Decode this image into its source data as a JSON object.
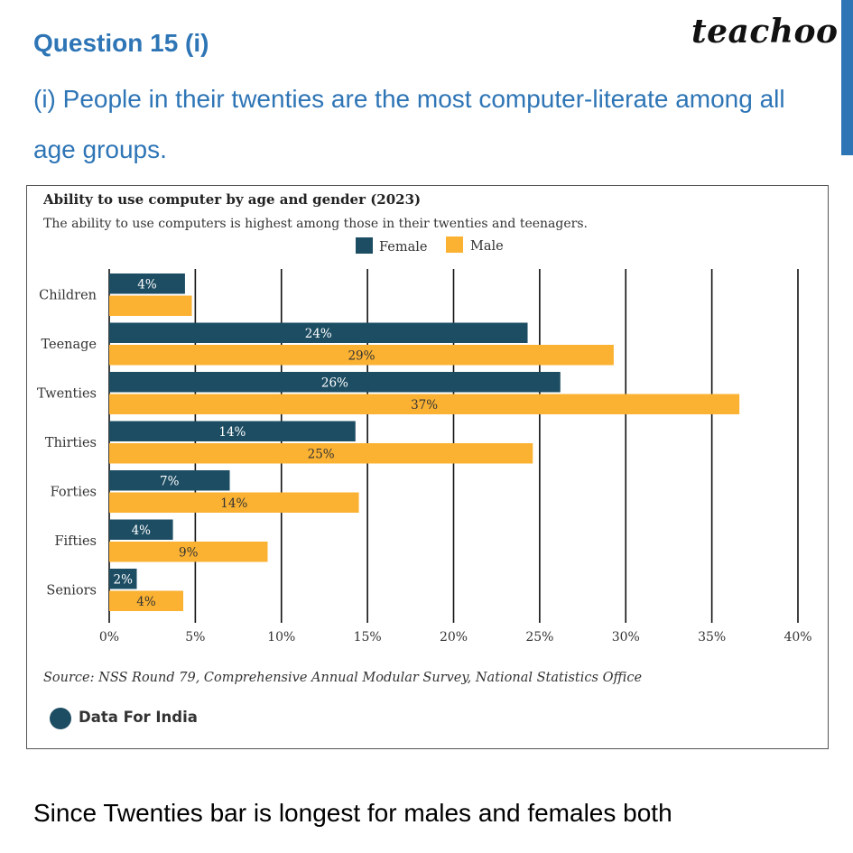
{
  "header": {
    "question": "Question 15 (i)",
    "statement": "(i) People in their twenties are the most computer-literate among all age groups.",
    "brand": "teachoo"
  },
  "chart_data": {
    "type": "bar",
    "orientation": "horizontal",
    "title": "Ability to use computer by age and gender (2023)",
    "subtitle": "The ability to use computers is highest among those in their twenties and teenagers.",
    "categories": [
      "Children",
      "Teenage",
      "Twenties",
      "Thirties",
      "Forties",
      "Fifties",
      "Seniors"
    ],
    "series": [
      {
        "name": "Female",
        "color": "#1d4d63",
        "values": [
          4.4,
          24.3,
          26.2,
          14.3,
          7.0,
          3.7,
          1.6
        ],
        "labels": [
          "4%",
          "24%",
          "26%",
          "14%",
          "7%",
          "4%",
          "2%"
        ]
      },
      {
        "name": "Male",
        "color": "#fbb232",
        "values": [
          4.8,
          29.3,
          36.6,
          24.6,
          14.5,
          9.2,
          4.3
        ],
        "labels": [
          "",
          "29%",
          "37%",
          "25%",
          "14%",
          "9%",
          "4%"
        ]
      }
    ],
    "xlim": [
      0,
      40
    ],
    "xticks": [
      0,
      5,
      10,
      15,
      20,
      25,
      30,
      35,
      40
    ],
    "xticklabels": [
      "0%",
      "5%",
      "10%",
      "15%",
      "20%",
      "25%",
      "30%",
      "35%",
      "40%"
    ],
    "legend": "top-center",
    "grid": true,
    "source": "Source: NSS Round 79, Comprehensive Annual Modular Survey, National Statistics Office",
    "publisher": "Data For India"
  },
  "footer": {
    "conclusion": "Since Twenties bar is longest for males and females both"
  }
}
